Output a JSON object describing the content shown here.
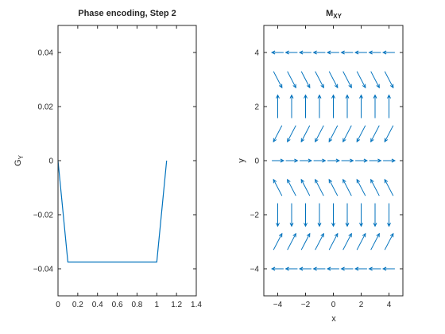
{
  "chart_data": [
    {
      "type": "line",
      "title": "Phase encoding, Step 2",
      "xlabel": "",
      "ylabel": "G",
      "ylabel_sub": "Y",
      "xlim": [
        0,
        1.4
      ],
      "ylim": [
        -0.05,
        0.05
      ],
      "xticks": [
        "0",
        "0.2",
        "0.4",
        "0.6",
        "0.8",
        "1",
        "1.2",
        "1.4"
      ],
      "yticks": [
        "−0.04",
        "−0.02",
        "0",
        "0.02",
        "0.04"
      ],
      "grid": false,
      "color": "#0072bd",
      "series": [
        {
          "x": [
            0,
            0.1,
            1.0,
            1.1
          ],
          "y": [
            0,
            -0.0375,
            -0.0375,
            0
          ]
        }
      ]
    },
    {
      "type": "quiver",
      "title": "M",
      "title_sub": "XY",
      "xlabel": "x",
      "ylabel": "y",
      "xlim": [
        -5,
        5
      ],
      "ylim": [
        -5,
        5
      ],
      "xticks": [
        "−4",
        "−2",
        "0",
        "2",
        "4"
      ],
      "yticks": [
        "−4",
        "−2",
        "0",
        "2",
        "4"
      ],
      "grid": false,
      "color": "#0072bd",
      "x_positions": [
        -4,
        -3,
        -2,
        -1,
        0,
        1,
        2,
        3,
        4
      ],
      "rows": [
        {
          "y": 4,
          "angle_deg": 180
        },
        {
          "y": 3,
          "angle_deg": -45
        },
        {
          "y": 2,
          "angle_deg": 90
        },
        {
          "y": 1,
          "angle_deg": -135
        },
        {
          "y": 0,
          "angle_deg": 0
        },
        {
          "y": -1,
          "angle_deg": 135
        },
        {
          "y": -2,
          "angle_deg": -90
        },
        {
          "y": -3,
          "angle_deg": 45
        },
        {
          "y": -4,
          "angle_deg": 180
        }
      ],
      "arrow_length": 0.85
    }
  ]
}
